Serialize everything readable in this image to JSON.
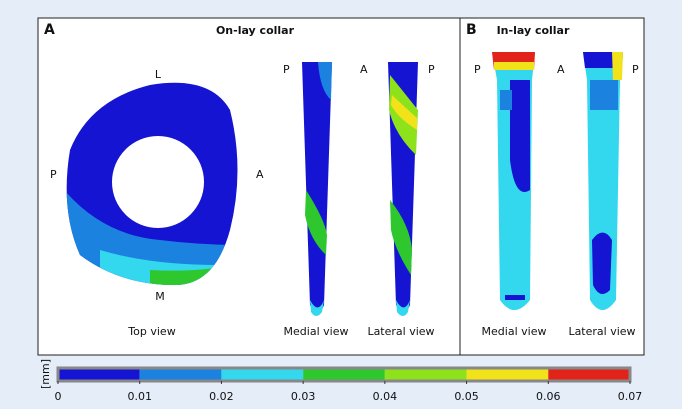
{
  "panels": [
    {
      "letter": "A",
      "title": "On-lay collar",
      "top_view": {
        "top": "L",
        "left": "P",
        "right": "A",
        "bottom": "M",
        "caption": "Top view"
      },
      "orientation": [
        "P",
        "A",
        "P"
      ],
      "captions": [
        "Medial view",
        "Lateral view"
      ]
    },
    {
      "letter": "B",
      "title": "In-lay collar",
      "orientation": [
        "P",
        "A",
        "P"
      ],
      "captions": [
        "Medial view",
        "Lateral view"
      ]
    }
  ],
  "colorbar": {
    "unit": "[mm]",
    "range": [
      0,
      0.07
    ],
    "ticks": [
      0,
      0.01,
      0.02,
      0.03,
      0.04,
      0.05,
      0.06,
      0.07
    ],
    "colors": [
      "#1414d2",
      "#1c82e0",
      "#34d8ee",
      "#2ec82e",
      "#8ee21c",
      "#f2e21a",
      "#e2231a"
    ]
  }
}
